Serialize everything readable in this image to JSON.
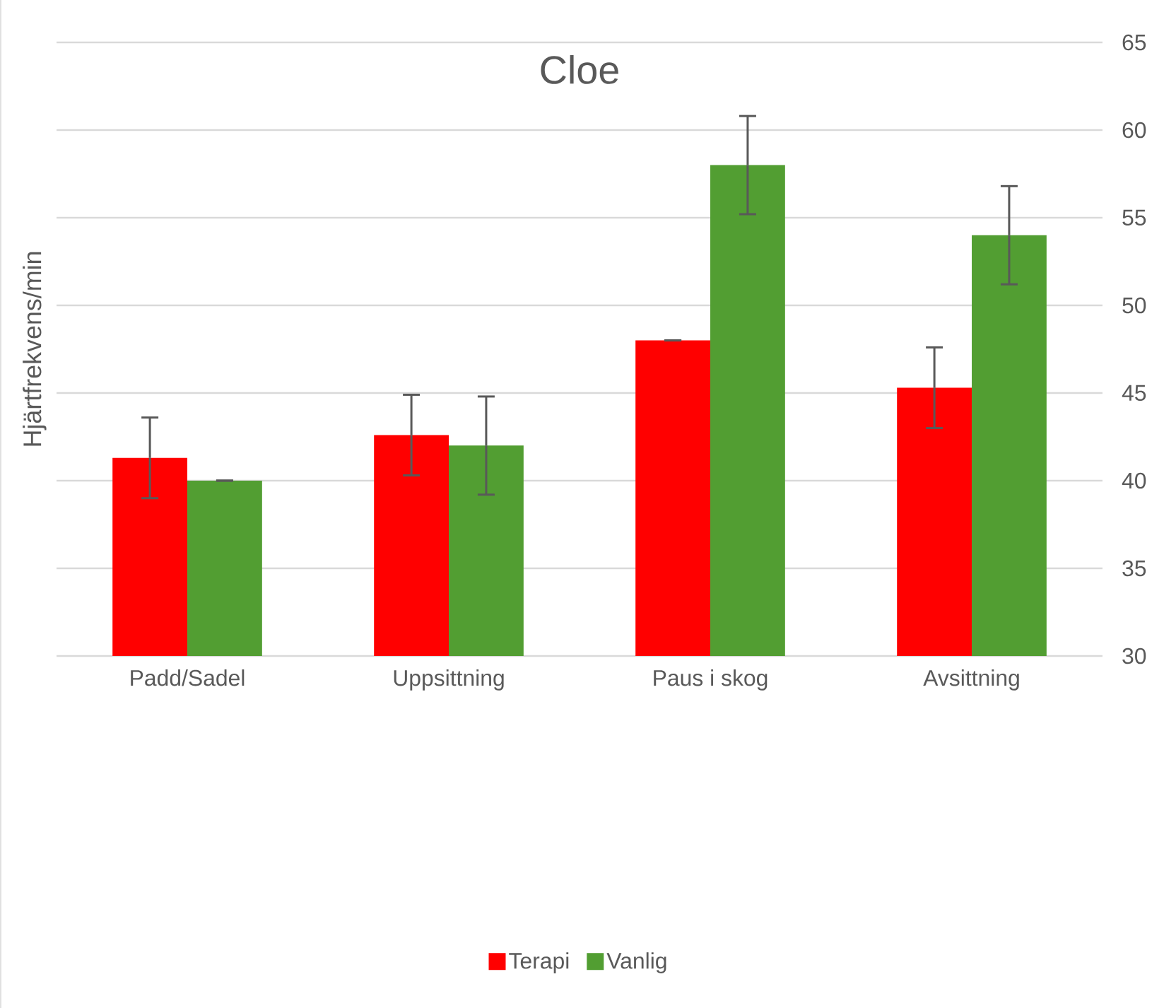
{
  "chart_data": {
    "type": "bar",
    "title": "Cloe",
    "ylabel": "Hjärtfrekvens/min",
    "categories": [
      "Padd/Sadel",
      "Uppsittning",
      "Paus i skog",
      "Avsittning"
    ],
    "series": [
      {
        "name": "Terapi",
        "color": "#ff0000",
        "values": [
          41.3,
          42.6,
          48,
          45.3
        ],
        "errors": [
          2.3,
          2.3,
          0,
          2.3
        ]
      },
      {
        "name": "Vanlig",
        "color": "#529e32",
        "values": [
          40,
          42,
          58,
          54
        ],
        "errors": [
          0,
          2.8,
          2.8,
          2.8
        ]
      }
    ],
    "ylim": [
      30,
      65
    ],
    "yticks": [
      30,
      35,
      40,
      45,
      50,
      55,
      60,
      65
    ],
    "grid": "y",
    "legend": "bottom"
  }
}
